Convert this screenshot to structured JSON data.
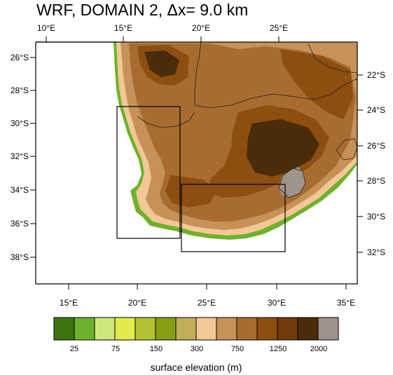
{
  "title": "WRF, DOMAIN 2, Δx= 9.0 km",
  "top_axis_labels": [
    "10°E",
    "15°E",
    "20°E",
    "25°E"
  ],
  "bottom_axis_labels": [
    "15°E",
    "20°E",
    "25°E",
    "30°E",
    "35°E"
  ],
  "left_axis_labels": [
    "26°S",
    "28°S",
    "30°S",
    "32°S",
    "34°S",
    "36°S",
    "38°S"
  ],
  "right_axis_labels": [
    "22°S",
    "24°S",
    "26°S",
    "28°S",
    "30°S",
    "32°S"
  ],
  "colorbar": {
    "title": "surface elevation (m)",
    "labels": [
      "25",
      "75",
      "150",
      "300",
      "750",
      "1250",
      "2000"
    ],
    "colors": [
      "#3e7410",
      "#6db22b",
      "#cfe87e",
      "#e1ec4c",
      "#b2c232",
      "#879d12",
      "#c0ae5b",
      "#f3c796",
      "#c79257",
      "#a86c31",
      "#8e4e0f",
      "#6f3c0e",
      "#4a2c0a",
      "#a0948a"
    ]
  },
  "map_colors": {
    "ocean": "#ffffff",
    "coast": "#6db22b",
    "lowland": "#f3c796",
    "midland": "#c79257",
    "upland": "#a86c31",
    "highland": "#8e4e0f",
    "peak": "#4a2c0a",
    "lesotho": "#a0948a"
  }
}
